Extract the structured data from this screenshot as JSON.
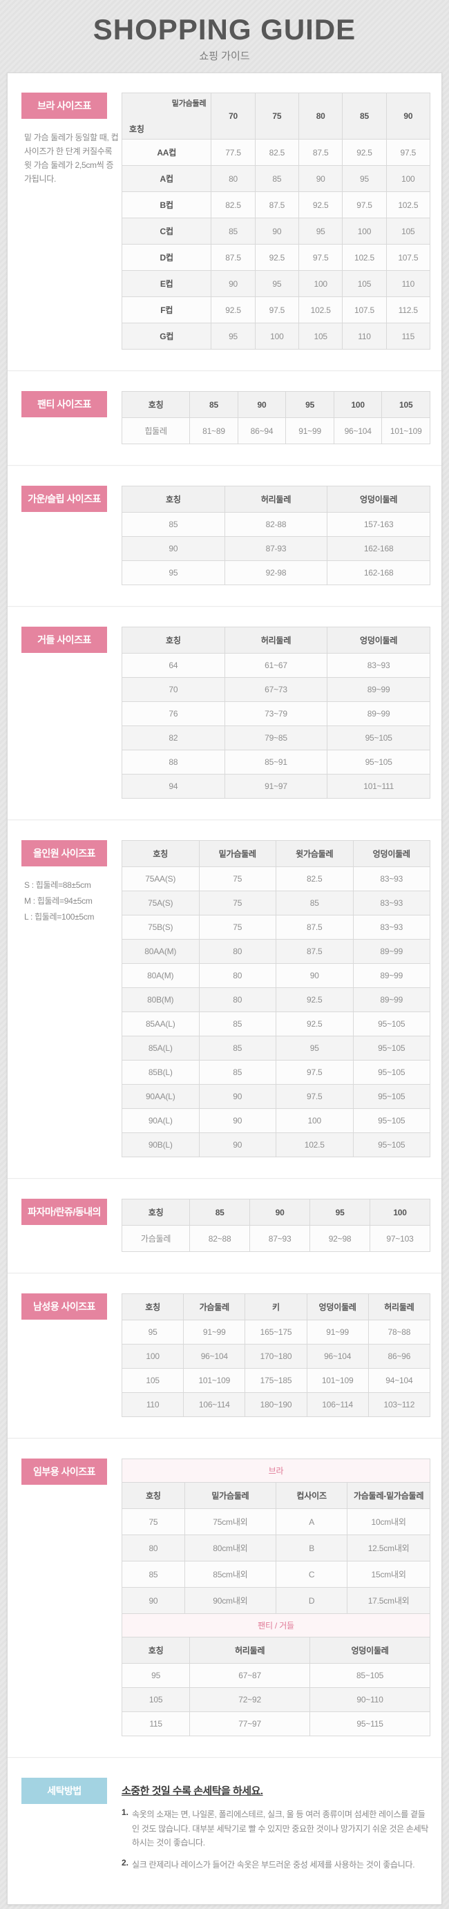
{
  "header": {
    "title": "SHOPPING GUIDE",
    "subtitle": "쇼핑 가이드"
  },
  "colors": {
    "accent_pink": "#e5849f",
    "accent_blue": "#a3d3e2",
    "caption_pink": "#e07a97"
  },
  "sections": {
    "bra": {
      "label": "브라 사이즈표",
      "note": "밑 가슴 둘레가 동일할 때, 컵 사이즈가 한 단계 커질수록 윗 가슴 둘레가 2,5cm씩 증가됩니다.",
      "corner_top": "밑가슴둘레",
      "corner_bottom": "호칭",
      "columns": [
        "70",
        "75",
        "80",
        "85",
        "90"
      ],
      "rows": [
        [
          "AA컵",
          "77.5",
          "82.5",
          "87.5",
          "92.5",
          "97.5"
        ],
        [
          "A컵",
          "80",
          "85",
          "90",
          "95",
          "100"
        ],
        [
          "B컵",
          "82.5",
          "87.5",
          "92.5",
          "97.5",
          "102.5"
        ],
        [
          "C컵",
          "85",
          "90",
          "95",
          "100",
          "105"
        ],
        [
          "D컵",
          "87.5",
          "92.5",
          "97.5",
          "102.5",
          "107.5"
        ],
        [
          "E컵",
          "90",
          "95",
          "100",
          "105",
          "110"
        ],
        [
          "F컵",
          "92.5",
          "97.5",
          "102.5",
          "107.5",
          "112.5"
        ],
        [
          "G컵",
          "95",
          "100",
          "105",
          "110",
          "115"
        ]
      ]
    },
    "panty": {
      "label": "팬티 사이즈표",
      "table": {
        "columns": [
          "호칭",
          "85",
          "90",
          "95",
          "100",
          "105"
        ],
        "rows": [
          [
            "힙둘레",
            "81~89",
            "86~94",
            "91~99",
            "96~104",
            "101~109"
          ]
        ]
      }
    },
    "gown": {
      "label": "가운/슬립 사이즈표",
      "table": {
        "columns": [
          "호칭",
          "허리둘레",
          "엉덩이둘레"
        ],
        "rows": [
          [
            "85",
            "82-88",
            "157-163"
          ],
          [
            "90",
            "87-93",
            "162-168"
          ],
          [
            "95",
            "92-98",
            "162-168"
          ]
        ]
      }
    },
    "girdle": {
      "label": "거들 사이즈표",
      "table": {
        "columns": [
          "호칭",
          "허리둘레",
          "엉덩이둘레"
        ],
        "rows": [
          [
            "64",
            "61~67",
            "83~93"
          ],
          [
            "70",
            "67~73",
            "89~99"
          ],
          [
            "76",
            "73~79",
            "89~99"
          ],
          [
            "82",
            "79~85",
            "95~105"
          ],
          [
            "88",
            "85~91",
            "95~105"
          ],
          [
            "94",
            "91~97",
            "101~111"
          ]
        ]
      }
    },
    "allinone": {
      "label": "올인원 사이즈표",
      "notes": [
        "S : 힙둘레=88±5cm",
        "M : 힙둘레=94±5cm",
        "L : 힙둘레=100±5cm"
      ],
      "table": {
        "columns": [
          "호칭",
          "밑가슴둘레",
          "윗가슴둘레",
          "엉덩이둘레"
        ],
        "rows": [
          [
            "75AA(S)",
            "75",
            "82.5",
            "83~93"
          ],
          [
            "75A(S)",
            "75",
            "85",
            "83~93"
          ],
          [
            "75B(S)",
            "75",
            "87.5",
            "83~93"
          ],
          [
            "80AA(M)",
            "80",
            "87.5",
            "89~99"
          ],
          [
            "80A(M)",
            "80",
            "90",
            "89~99"
          ],
          [
            "80B(M)",
            "80",
            "92.5",
            "89~99"
          ],
          [
            "85AA(L)",
            "85",
            "92.5",
            "95~105"
          ],
          [
            "85A(L)",
            "85",
            "95",
            "95~105"
          ],
          [
            "85B(L)",
            "85",
            "97.5",
            "95~105"
          ],
          [
            "90AA(L)",
            "90",
            "97.5",
            "95~105"
          ],
          [
            "90A(L)",
            "90",
            "100",
            "95~105"
          ],
          [
            "90B(L)",
            "90",
            "102.5",
            "95~105"
          ]
        ]
      }
    },
    "pajama": {
      "label": "파자마/란쥬/동내의",
      "table": {
        "columns": [
          "호칭",
          "85",
          "90",
          "95",
          "100"
        ],
        "rows": [
          [
            "가슴둘레",
            "82~88",
            "87~93",
            "92~98",
            "97~103"
          ]
        ]
      }
    },
    "mens": {
      "label": "남성용 사이즈표",
      "table": {
        "columns": [
          "호칭",
          "가슴둘레",
          "키",
          "엉덩이둘레",
          "허리둘레"
        ],
        "rows": [
          [
            "95",
            "91~99",
            "165~175",
            "91~99",
            "78~88"
          ],
          [
            "100",
            "96~104",
            "170~180",
            "96~104",
            "86~96"
          ],
          [
            "105",
            "101~109",
            "175~185",
            "101~109",
            "94~104"
          ],
          [
            "110",
            "106~114",
            "180~190",
            "106~114",
            "103~112"
          ]
        ]
      }
    },
    "maternity": {
      "label": "임부용 사이즈표",
      "bra_caption": "브라",
      "bra_table": {
        "columns": [
          "호칭",
          "밑가슴둘레",
          "컵사이즈",
          "가슴둘레-밑가슴둘레"
        ],
        "rows": [
          [
            "75",
            "75cm내외",
            "A",
            "10cm내외"
          ],
          [
            "80",
            "80cm내외",
            "B",
            "12.5cm내외"
          ],
          [
            "85",
            "85cm내외",
            "C",
            "15cm내외"
          ],
          [
            "90",
            "90cm내외",
            "D",
            "17.5cm내외"
          ]
        ]
      },
      "bottom_caption": "팬티 / 거들",
      "bottom_table": {
        "columns": [
          "호칭",
          "허리둘레",
          "엉덩이둘레"
        ],
        "rows": [
          [
            "95",
            "67~87",
            "85~105"
          ],
          [
            "105",
            "72~92",
            "90~110"
          ],
          [
            "115",
            "77~97",
            "95~115"
          ]
        ]
      }
    },
    "washing": {
      "label": "세탁방법",
      "title": "소중한 것일 수록 손세탁을 하세요.",
      "items": [
        {
          "num": "1.",
          "text": "속옷의 소재는 면, 나일론, 폴리에스테르, 실크, 울 등 여러 종류이며 섬세한 레이스를 곁들인 것도 많습니다. 대부분 세탁기로 빨 수 있지만 중요한 것이나 망가지기 쉬운 것은 손세탁 하시는 것이 좋습니다."
        },
        {
          "num": "2.",
          "text": "실크 란제리나 레이스가 들어간 속옷은 부드러운 중성 세제를 사용하는 것이 좋습니다."
        }
      ]
    }
  }
}
